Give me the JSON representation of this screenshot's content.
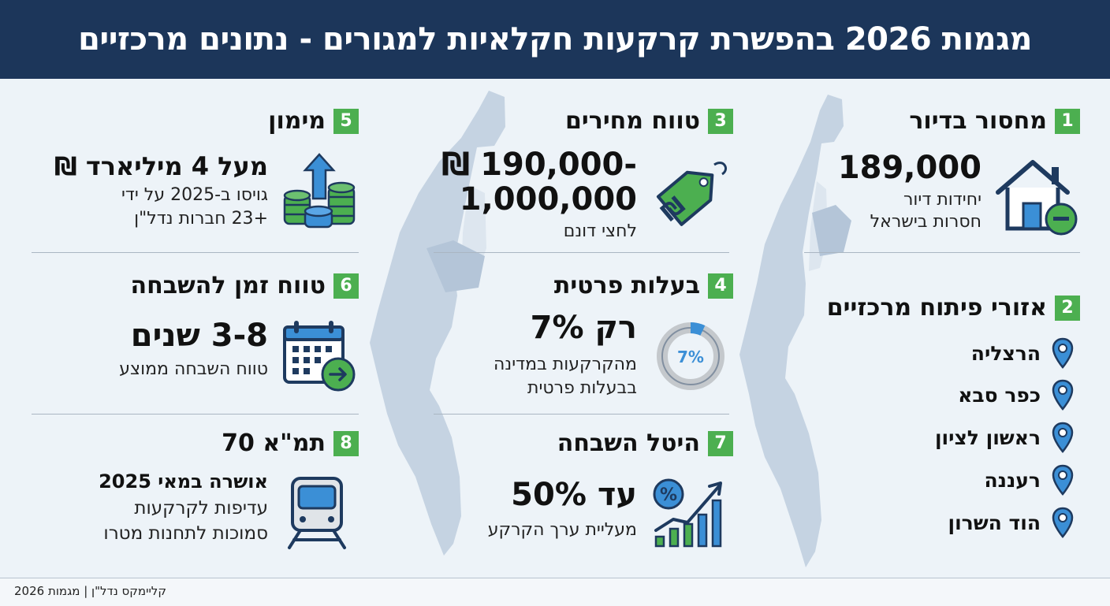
{
  "header": {
    "title": "מגמות 2026 בהפשרת קרקעות חקלאיות למגורים - נתונים מרכזיים"
  },
  "colors": {
    "header_bg": "#1c365a",
    "accent_green": "#4caf50",
    "accent_blue": "#3b8fd6",
    "map_fill": "#c5d3e2"
  },
  "sections": {
    "s1": {
      "num": "1",
      "title": "מחסור בדיור",
      "value": "189,000",
      "desc1": "יחידות דיור",
      "desc2": "חסרות בישראל",
      "icon": "house-minus-icon"
    },
    "s2": {
      "num": "2",
      "title": "אזורי פיתוח מרכזיים",
      "icon": "map-pin-icon",
      "areas": [
        "הרצליה",
        "כפר סבא",
        "ראשון לציון",
        "רעננה",
        "הוד השרון"
      ]
    },
    "s3": {
      "num": "3",
      "title": "טווח מחירים",
      "value1": "190,000-",
      "value2": "1,000,000",
      "currency": "₪",
      "desc": "לחצי דונם",
      "icon": "price-tag-icon"
    },
    "s4": {
      "num": "4",
      "title": "בעלות פרטית",
      "value": "רק 7%",
      "desc1": "מהקרקעות במדינה",
      "desc2": "בבעלות פרטית",
      "donut_label": "7%",
      "donut_share": 0.07,
      "icon": "donut-chart-icon"
    },
    "s5": {
      "num": "5",
      "title": "מימון",
      "value": "מעל 4 מיליארד ₪",
      "desc1": "גויסו ב-2025 על ידי",
      "desc2": "+23 חברות נדל\"ן",
      "icon": "coins-arrow-icon"
    },
    "s6": {
      "num": "6",
      "title": "טווח זמן להשבחה",
      "value": "3-8 שנים",
      "desc": "טווח השבחה ממוצע",
      "icon": "calendar-arrow-icon"
    },
    "s7": {
      "num": "7",
      "title": "היטל השבחה",
      "value": "עד 50%",
      "desc": "מעליית ערך הקרקע",
      "icon": "percent-growth-chart-icon"
    },
    "s8": {
      "num": "8",
      "title": "תמ\"א 70",
      "value": "אושרה במאי 2025",
      "desc1": "עדיפות לקרקעות",
      "desc2": "סמוכות לתחנות מטרו",
      "icon": "train-icon"
    }
  },
  "footer": {
    "text": "קליימקס נדל\"ן | מגמות 2026"
  }
}
